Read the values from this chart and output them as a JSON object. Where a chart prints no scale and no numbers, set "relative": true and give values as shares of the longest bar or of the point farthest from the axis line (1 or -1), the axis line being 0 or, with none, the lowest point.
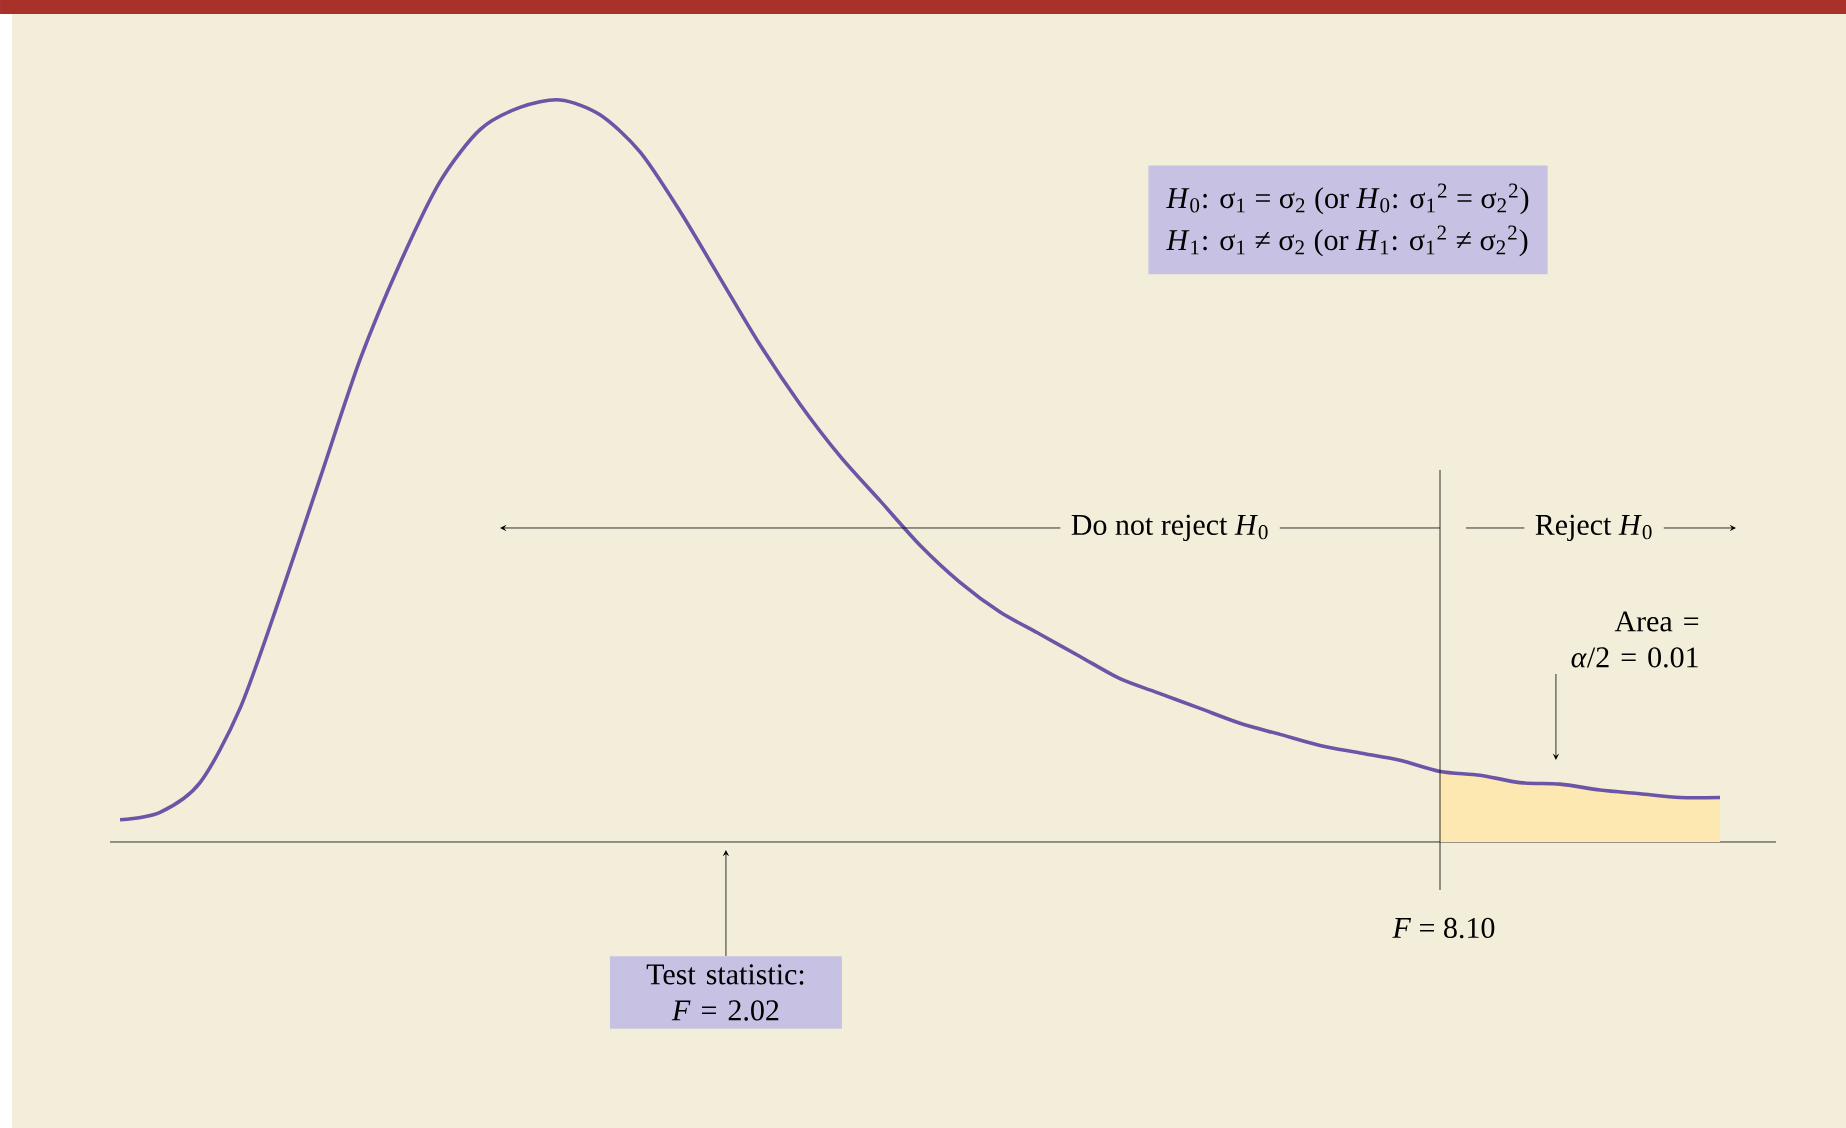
{
  "chart_data": {
    "type": "line",
    "relative": true,
    "categories": [
      null,
      null,
      null,
      null,
      null,
      null,
      null,
      null,
      null,
      null,
      null,
      null,
      null,
      null,
      null,
      null,
      null,
      null,
      null,
      null,
      null,
      null,
      null,
      null,
      null,
      null,
      null,
      null,
      null,
      null,
      null,
      null,
      null,
      null,
      null,
      null,
      null,
      null,
      null,
      null,
      null
    ],
    "series": [
      {
        "type": "area",
        "color": "#fde8b2",
        "values": [
          null,
          null,
          null,
          null,
          null,
          null,
          null,
          null,
          null,
          null,
          null,
          null,
          null,
          null,
          null,
          null,
          null,
          null,
          null,
          null,
          null,
          null,
          null,
          null,
          null,
          null,
          null,
          null,
          null,
          null,
          null,
          null,
          null,
          0.095,
          0.09,
          0.08,
          0.078,
          0.07,
          0.065,
          0.06,
          0.06
        ]
      },
      {
        "color": "#6b55a6",
        "values": [
          0.03,
          0.04,
          0.08,
          0.18,
          0.33,
          0.49,
          0.65,
          0.78,
          0.89,
          0.96,
          0.99,
          1.0,
          0.98,
          0.93,
          0.85,
          0.76,
          0.67,
          0.59,
          0.52,
          0.46,
          0.4,
          0.35,
          0.31,
          0.28,
          0.25,
          0.22,
          0.2,
          0.18,
          0.16,
          0.145,
          0.13,
          0.12,
          0.11,
          0.095,
          0.09,
          0.08,
          0.078,
          0.07,
          0.065,
          0.06,
          0.06
        ]
      }
    ],
    "annotations": [
      "*H*$_{0}$:   σ$_{1}$ = σ$_{2}$      (or *H*$_{0}$:   σ$_{1}$$^{2}$ = σ$_{2}$$^{2}$)",
      "*H*$_{1}$:   σ$_{1}$ ≠ σ$_{2}$      (or *H*$_{1}$:   σ$_{1}$$^{2}$ ≠ σ$_{2}$$^{2}$)",
      "Do not reject *H*$_{0}$",
      "Reject *H*$_{0}$",
      "Area = *α*/2 = 0.01",
      "*F* = 8.10",
      "Test statistic: *F* = 2.02"
    ]
  }
}
